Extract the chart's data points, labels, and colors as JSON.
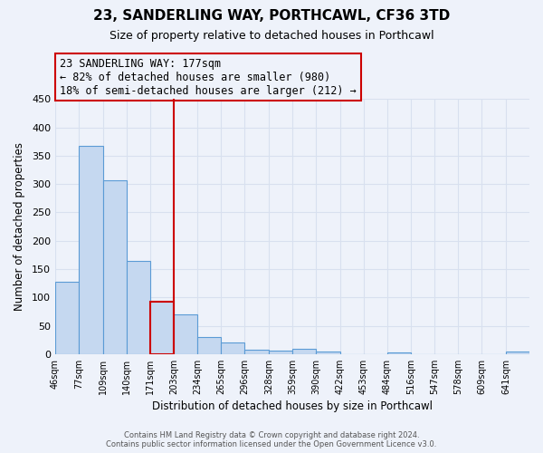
{
  "title": "23, SANDERLING WAY, PORTHCAWL, CF36 3TD",
  "subtitle": "Size of property relative to detached houses in Porthcawl",
  "xlabel": "Distribution of detached houses by size in Porthcawl",
  "ylabel": "Number of detached properties",
  "bar_color": "#c5d8f0",
  "bar_edge_color": "#5b9bd5",
  "highlight_bar_edge_color": "#cc0000",
  "annotation_box_edge_color": "#cc0000",
  "bins": [
    46,
    77,
    109,
    140,
    171,
    203,
    234,
    265,
    296,
    328,
    359,
    390,
    422,
    453,
    484,
    516,
    547,
    578,
    609,
    641,
    672
  ],
  "counts": [
    127,
    367,
    307,
    165,
    93,
    70,
    30,
    20,
    8,
    6,
    9,
    4,
    0,
    0,
    3,
    0,
    0,
    0,
    0,
    4
  ],
  "highlight_bin_index": 4,
  "property_size": 177,
  "annotation_line1": "23 SANDERLING WAY: 177sqm",
  "annotation_line2": "← 82% of detached houses are smaller (980)",
  "annotation_line3": "18% of semi-detached houses are larger (212) →",
  "ylim": [
    0,
    450
  ],
  "yticks": [
    0,
    50,
    100,
    150,
    200,
    250,
    300,
    350,
    400,
    450
  ],
  "footer_line1": "Contains HM Land Registry data © Crown copyright and database right 2024.",
  "footer_line2": "Contains public sector information licensed under the Open Government Licence v3.0.",
  "background_color": "#eef2fa",
  "grid_color": "#d8e0ef",
  "title_fontsize": 11,
  "subtitle_fontsize": 9,
  "annotation_fontsize": 8.5
}
